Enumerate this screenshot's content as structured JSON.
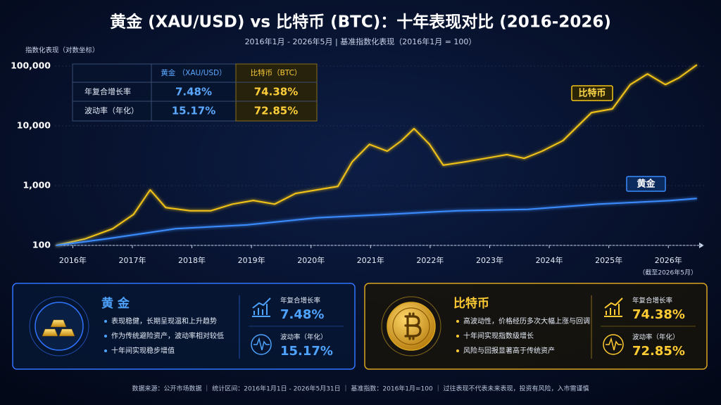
{
  "title": "黄金 (XAU/USD) vs 比特币 (BTC)：十年表现对比 (2016-2026)",
  "subtitle": "2016年1月 - 2026年5月 | 基准指数化表现（2016年1月 = 100）",
  "chart_data": {
    "type": "line",
    "y_label": "指数化表现（对数坐标）",
    "log_scale": true,
    "xlim": [
      2015.7,
      2026.6
    ],
    "xticks": [
      {
        "value": 2016,
        "label": "2016年"
      },
      {
        "value": 2017,
        "label": "2017年"
      },
      {
        "value": 2018,
        "label": "2018年"
      },
      {
        "value": 2019,
        "label": "2019年"
      },
      {
        "value": 2020,
        "label": "2020年"
      },
      {
        "value": 2021,
        "label": "2021年"
      },
      {
        "value": 2022,
        "label": "2022年"
      },
      {
        "value": 2023,
        "label": "2023年"
      },
      {
        "value": 2024,
        "label": "2024年"
      },
      {
        "value": 2025,
        "label": "2025年"
      },
      {
        "value": 2026,
        "label": "2026年"
      }
    ],
    "x_note": "（截至2026年5月）",
    "ylim": [
      100,
      100000
    ],
    "yticks": [
      100,
      {
        "value": 1000,
        "label": "1,000"
      },
      {
        "value": 10000,
        "label": "10,000"
      },
      {
        "value": 100000,
        "label": "100,000"
      }
    ],
    "series": [
      {
        "name": "比特币",
        "color": "#f5c518",
        "x": [
          2015.72,
          2016.2,
          2016.67,
          2017.02,
          2017.3,
          2017.56,
          2017.97,
          2018.32,
          2018.68,
          2019.03,
          2019.39,
          2019.74,
          2020.1,
          2020.45,
          2020.69,
          2020.98,
          2021.28,
          2021.52,
          2021.73,
          2021.99,
          2022.22,
          2022.58,
          2022.93,
          2023.29,
          2023.58,
          2023.88,
          2024.23,
          2024.71,
          2025.06,
          2025.36,
          2025.65,
          2025.95,
          2026.18,
          2026.48
        ],
        "values": [
          100,
          128,
          190,
          330,
          850,
          430,
          380,
          380,
          490,
          565,
          490,
          740,
          850,
          970,
          2500,
          4900,
          3770,
          5660,
          9000,
          4900,
          2200,
          2500,
          2860,
          3300,
          2860,
          3770,
          5660,
          16700,
          19200,
          49000,
          74000,
          49000,
          64000,
          105000
        ]
      },
      {
        "name": "黄金",
        "color": "#3b8cff",
        "x": [
          2015.72,
          2016.55,
          2017.73,
          2018.92,
          2020.1,
          2021.28,
          2022.46,
          2023.64,
          2024.83,
          2026.01,
          2026.48
        ],
        "values": [
          100,
          128,
          190,
          220,
          290,
          330,
          380,
          400,
          490,
          560,
          610
        ]
      }
    ]
  },
  "table": {
    "header": [
      "黄金 （XAU/USD）",
      "比特币（BTC）"
    ],
    "rows": [
      [
        "年复合增长率",
        "7.48%",
        "74.38%"
      ],
      [
        "波动率（年化）",
        "15.17%",
        "72.85%"
      ]
    ]
  },
  "panels": [
    {
      "title": "黄 金",
      "bullets": [
        "表现稳健，长期呈现温和上升趋势",
        "作为传统避险资产，波动率相对较低",
        "十年间实现稳步增值"
      ],
      "stats": [
        {
          "label": "年复合增长率",
          "value": "7.48%"
        },
        {
          "label": "波动率（年化）",
          "value": "15.17%"
        }
      ]
    },
    {
      "title": "比特币",
      "bullets": [
        "高波动性，价格经历多次大幅上涨与回调",
        "十年间实现指数级增长",
        "风险与回报显著高于传统资产"
      ],
      "stats": [
        {
          "label": "年复合增长率",
          "value": "74.38%"
        },
        {
          "label": "波动率（年化）",
          "value": "72.85%"
        }
      ]
    }
  ],
  "footer": "数据来源：公开市场数据 ｜ 统计区间：2016年1月1日 - 2026年5月31日 ｜ 基准指数：2016年1月=100 ｜ 过往表现不代表未来表现，投资有风险，入市需谨慎"
}
